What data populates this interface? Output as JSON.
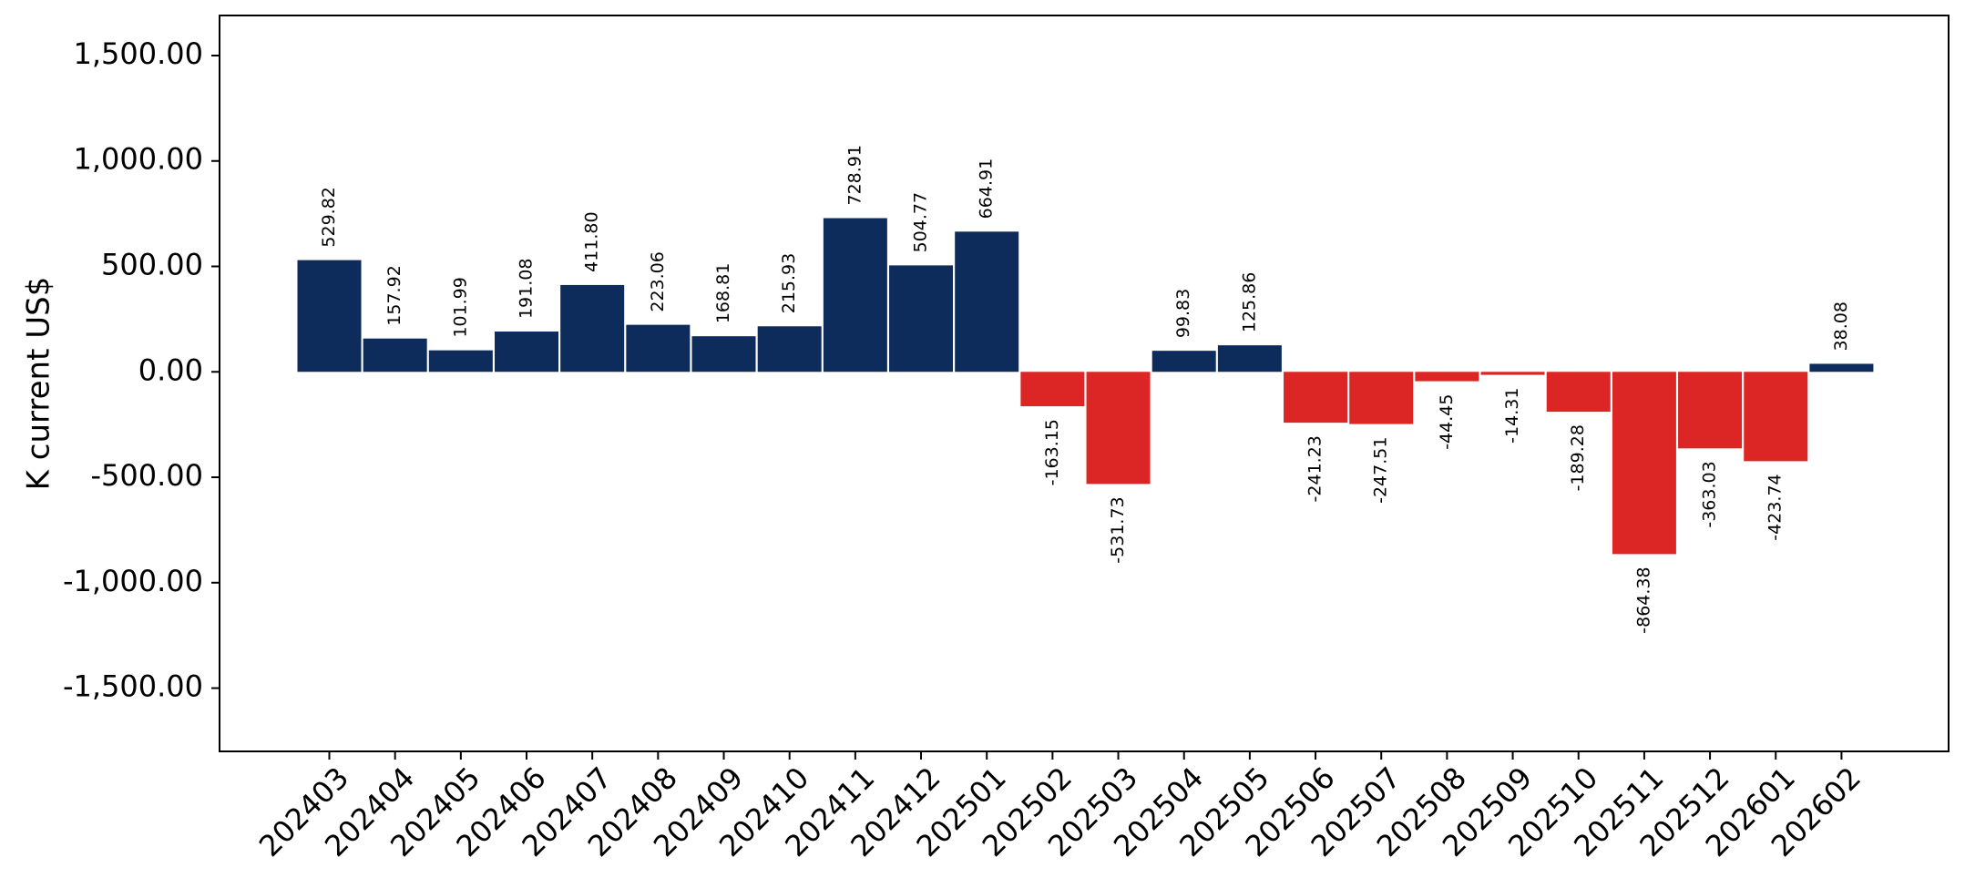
{
  "chart_data": {
    "type": "bar",
    "ylabel": "K current US$",
    "xlabel": "",
    "title": "",
    "ylim": [
      -1800,
      1690
    ],
    "yticks": [
      -1500,
      -1000,
      -500,
      0,
      500,
      1000,
      1500
    ],
    "ytick_labels": [
      "-1,500.00",
      "-1,000.00",
      "-500.00",
      "0.00",
      "500.00",
      "1,000.00",
      "1,500.00"
    ],
    "grid": false,
    "colors": {
      "positive": "#0d2c5c",
      "negative": "#dc2626"
    },
    "categories": [
      "202403",
      "202404",
      "202405",
      "202406",
      "202407",
      "202408",
      "202409",
      "202410",
      "202411",
      "202412",
      "202501",
      "202502",
      "202503",
      "202504",
      "202505",
      "202506",
      "202507",
      "202508",
      "202509",
      "202510",
      "202511",
      "202512",
      "202601",
      "202602"
    ],
    "values": [
      529.82,
      157.92,
      101.99,
      191.08,
      411.8,
      223.06,
      168.81,
      215.93,
      728.91,
      504.77,
      664.91,
      -163.15,
      -531.73,
      99.83,
      125.86,
      -241.23,
      -247.51,
      -44.45,
      -14.31,
      -189.28,
      -864.38,
      -363.03,
      -423.74,
      38.08
    ],
    "value_labels": [
      "529.82",
      "157.92",
      "101.99",
      "191.08",
      "411.80",
      "223.06",
      "168.81",
      "215.93",
      "728.91",
      "504.77",
      "664.91",
      "-163.15",
      "-531.73",
      "99.83",
      "125.86",
      "-241.23",
      "-247.51",
      "-44.45",
      "-14.31",
      "-189.28",
      "-864.38",
      "-363.03",
      "-423.74",
      "38.08"
    ]
  }
}
